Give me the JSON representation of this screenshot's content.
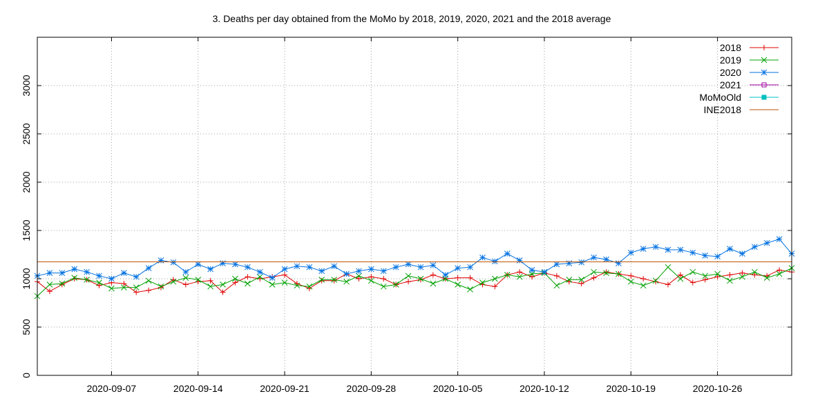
{
  "chart_data": {
    "type": "line",
    "title": "3. Deaths per day obtained from the MoMo by 2018, 2019, 2020, 2021 and the 2018 average",
    "xlabel": "",
    "ylabel": "",
    "x_start": "2020-09-01",
    "x_end": "2020-11-01",
    "xticks": [
      "2020-09-07",
      "2020-09-14",
      "2020-09-21",
      "2020-09-28",
      "2020-10-05",
      "2020-10-12",
      "2020-10-19",
      "2020-10-26"
    ],
    "ylim": [
      0,
      3500
    ],
    "yticks": [
      0,
      500,
      1000,
      1500,
      2000,
      2500,
      3000
    ],
    "grid": true,
    "legend_position": "top-right",
    "series": [
      {
        "name": "2018",
        "color": "#e00000",
        "marker": "plus",
        "values": [
          970,
          870,
          940,
          1000,
          990,
          930,
          960,
          950,
          860,
          880,
          910,
          990,
          940,
          970,
          980,
          860,
          960,
          1020,
          1000,
          1020,
          1040,
          950,
          900,
          980,
          980,
          1050,
          1000,
          1020,
          1000,
          940,
          970,
          990,
          1040,
          1000,
          1010,
          1010,
          940,
          920,
          1040,
          1070,
          1020,
          1060,
          1030,
          970,
          950,
          1010,
          1070,
          1050,
          1030,
          1000,
          970,
          940,
          1040,
          960,
          990,
          1020,
          1040,
          1060,
          1040,
          1030,
          1090,
          1070
        ]
      },
      {
        "name": "2019",
        "color": "#00a000",
        "marker": "cross",
        "values": [
          820,
          940,
          950,
          1010,
          990,
          960,
          900,
          910,
          910,
          980,
          920,
          970,
          1010,
          990,
          920,
          940,
          1000,
          950,
          1020,
          940,
          960,
          930,
          920,
          990,
          990,
          970,
          1030,
          980,
          920,
          940,
          1030,
          1000,
          950,
          1000,
          940,
          890,
          960,
          1000,
          1040,
          1020,
          1050,
          1060,
          930,
          990,
          990,
          1070,
          1060,
          1050,
          970,
          930,
          980,
          1120,
          1000,
          1070,
          1030,
          1050,
          980,
          1020,
          1070,
          1010,
          1050,
          1110
        ]
      },
      {
        "name": "2020",
        "color": "#0070e0",
        "marker": "star",
        "values": [
          1030,
          1060,
          1060,
          1100,
          1070,
          1030,
          1000,
          1060,
          1020,
          1110,
          1190,
          1170,
          1070,
          1150,
          1100,
          1160,
          1150,
          1120,
          1070,
          1010,
          1100,
          1130,
          1120,
          1080,
          1130,
          1050,
          1080,
          1100,
          1080,
          1120,
          1150,
          1120,
          1140,
          1040,
          1110,
          1120,
          1220,
          1180,
          1260,
          1190,
          1090,
          1070,
          1150,
          1160,
          1170,
          1220,
          1200,
          1160,
          1270,
          1310,
          1330,
          1300,
          1300,
          1270,
          1240,
          1230,
          1310,
          1260,
          1330,
          1370,
          1410,
          1260
        ]
      },
      {
        "name": "2021",
        "color": "#a000a0",
        "marker": "square",
        "values": []
      },
      {
        "name": "MoMoOld",
        "color": "#00c0c0",
        "marker": "filled-square",
        "values": []
      },
      {
        "name": "INE2018",
        "color": "#c05000",
        "marker": "none",
        "constant": 1175
      }
    ]
  }
}
